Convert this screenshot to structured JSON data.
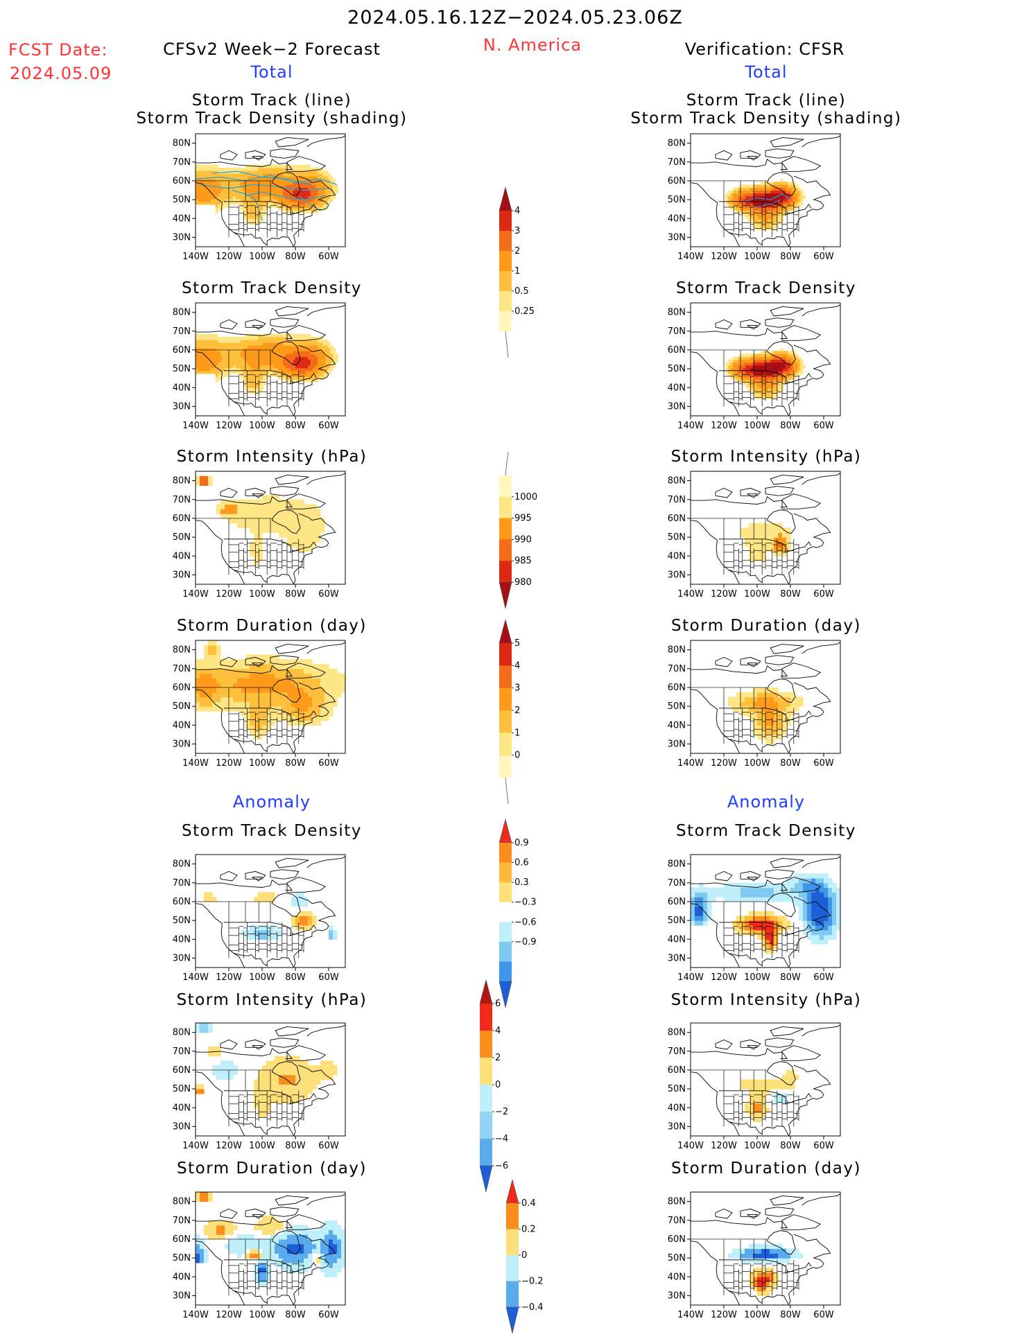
{
  "header": {
    "period": "2024.05.16.12Z−2024.05.23.06Z",
    "fcst_label": "FCST Date:",
    "fcst_date": "2024.05.09",
    "left_title": "CFSv2 Week−2 Forecast",
    "region": "N. America",
    "right_title": "Verification: CFSR",
    "total_left": "Total",
    "total_right": "Total",
    "anomaly_left": "Anomaly",
    "anomaly_right": "Anomaly"
  },
  "panel_titles": {
    "track_line": "Storm Track (line)",
    "track_shading": "Storm Track Density (shading)",
    "density": "Storm Track Density",
    "intensity": "Storm Intensity (hPa)",
    "duration": "Storm Duration (day)"
  },
  "axes": {
    "x_ticks": [
      "140W",
      "120W",
      "100W",
      "80W",
      "60W"
    ],
    "y_ticks": [
      "80N",
      "70N",
      "60N",
      "50N",
      "40N",
      "30N"
    ]
  },
  "colorbars": {
    "total_density": {
      "labels": [
        "4",
        "3",
        "2",
        "1",
        "0.5",
        "0.25"
      ],
      "colors": [
        "#a50f15",
        "#dd2a16",
        "#f46d1b",
        "#fd9a1a",
        "#fdbf3c",
        "#fee586",
        "#fff7bc"
      ]
    },
    "total_intensity": {
      "labels": [
        "1000",
        "995",
        "990",
        "985",
        "980"
      ],
      "colors": [
        "#fff7bc",
        "#fee586",
        "#fd9a1a",
        "#f46d1b",
        "#dd2a16",
        "#a50f15"
      ]
    },
    "total_duration": {
      "labels": [
        "5",
        "4",
        "3",
        "2",
        "1",
        "0"
      ],
      "colors": [
        "#a50f15",
        "#dd2a16",
        "#f46d1b",
        "#fd9a1a",
        "#fdbf3c",
        "#fee586",
        "#fff7bc"
      ]
    },
    "anom_density": {
      "labels": [
        "0.9",
        "0.6",
        "0.3",
        "−0.3",
        "−0.6",
        "−0.9"
      ],
      "colors": [
        "#ee2a1a",
        "#f98d1e",
        "#fdbb3a",
        "#fee07a",
        "#ffffff",
        "#bfeffb",
        "#7fc8f2",
        "#3f96e8",
        "#1c5fd6"
      ]
    },
    "anom_intensity": {
      "labels": [
        "6",
        "4",
        "2",
        "0",
        "−2",
        "−4",
        "−6"
      ],
      "colors": [
        "#b3150f",
        "#ee2a1a",
        "#f98d1e",
        "#fee07a",
        "#bfeffb",
        "#93d4f5",
        "#5aaaee",
        "#1c5fd6"
      ]
    },
    "anom_duration": {
      "labels": [
        "0.4",
        "0.2",
        "0",
        "−0.2",
        "−0.4"
      ],
      "colors": [
        "#ee2a1a",
        "#f98d1e",
        "#fee07a",
        "#bfeffb",
        "#5aaaee",
        "#1c5fd6"
      ]
    }
  },
  "chart_data": [
    {
      "type": "heatmap",
      "title": "Storm Track (line) / Storm Track Density (shading)",
      "source": "CFSv2 Week-2 Forecast",
      "section": "Total",
      "xlim": [
        "140W",
        "50W"
      ],
      "ylim": [
        "25N",
        "85N"
      ]
    },
    {
      "type": "heatmap",
      "title": "Storm Track (line) / Storm Track Density (shading)",
      "source": "Verification: CFSR",
      "section": "Total",
      "xlim": [
        "140W",
        "50W"
      ],
      "ylim": [
        "25N",
        "85N"
      ]
    },
    {
      "type": "heatmap",
      "title": "Storm Track Density",
      "source": "CFSv2 Week-2 Forecast",
      "section": "Total",
      "color_levels": [
        0.25,
        0.5,
        1,
        2,
        3,
        4
      ]
    },
    {
      "type": "heatmap",
      "title": "Storm Track Density",
      "source": "Verification: CFSR",
      "section": "Total",
      "color_levels": [
        0.25,
        0.5,
        1,
        2,
        3,
        4
      ]
    },
    {
      "type": "heatmap",
      "title": "Storm Intensity (hPa)",
      "source": "CFSv2 Week-2 Forecast",
      "section": "Total",
      "color_levels": [
        1000,
        995,
        990,
        985,
        980
      ]
    },
    {
      "type": "heatmap",
      "title": "Storm Intensity (hPa)",
      "source": "Verification: CFSR",
      "section": "Total",
      "color_levels": [
        1000,
        995,
        990,
        985,
        980
      ]
    },
    {
      "type": "heatmap",
      "title": "Storm Duration (day)",
      "source": "CFSv2 Week-2 Forecast",
      "section": "Total",
      "color_levels": [
        0,
        1,
        2,
        3,
        4,
        5
      ]
    },
    {
      "type": "heatmap",
      "title": "Storm Duration (day)",
      "source": "Verification: CFSR",
      "section": "Total",
      "color_levels": [
        0,
        1,
        2,
        3,
        4,
        5
      ]
    },
    {
      "type": "heatmap",
      "title": "Storm Track Density",
      "source": "CFSv2 Week-2 Forecast",
      "section": "Anomaly",
      "color_levels": [
        -0.9,
        -0.6,
        -0.3,
        0.3,
        0.6,
        0.9
      ]
    },
    {
      "type": "heatmap",
      "title": "Storm Track Density",
      "source": "Verification: CFSR",
      "section": "Anomaly",
      "color_levels": [
        -0.9,
        -0.6,
        -0.3,
        0.3,
        0.6,
        0.9
      ]
    },
    {
      "type": "heatmap",
      "title": "Storm Intensity (hPa)",
      "source": "CFSv2 Week-2 Forecast",
      "section": "Anomaly",
      "color_levels": [
        -6,
        -4,
        -2,
        0,
        2,
        4,
        6
      ]
    },
    {
      "type": "heatmap",
      "title": "Storm Intensity (hPa)",
      "source": "Verification: CFSR",
      "section": "Anomaly",
      "color_levels": [
        -6,
        -4,
        -2,
        0,
        2,
        4,
        6
      ]
    },
    {
      "type": "heatmap",
      "title": "Storm Duration (day)",
      "source": "CFSv2 Week-2 Forecast",
      "section": "Anomaly",
      "color_levels": [
        -0.4,
        -0.2,
        0,
        0.2,
        0.4
      ]
    },
    {
      "type": "heatmap",
      "title": "Storm Duration (day)",
      "source": "Verification: CFSR",
      "section": "Anomaly",
      "color_levels": [
        -0.4,
        -0.2,
        0,
        0.2,
        0.4
      ]
    }
  ]
}
